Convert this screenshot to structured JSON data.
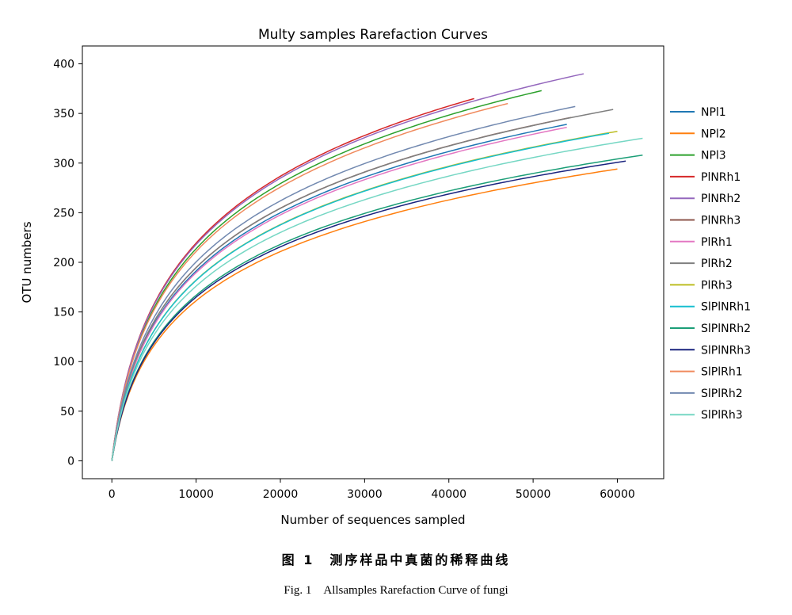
{
  "chart_data": {
    "type": "line",
    "title": "Multy samples Rarefaction Curves",
    "xlabel": "Number of sequences sampled",
    "ylabel": "OTU numbers",
    "xlim": [
      -3500,
      65500
    ],
    "ylim": [
      -18,
      418
    ],
    "xticks": [
      0,
      10000,
      20000,
      30000,
      40000,
      50000,
      60000
    ],
    "yticks": [
      0,
      50,
      100,
      150,
      200,
      250,
      300,
      350,
      400
    ],
    "grid": false,
    "legend": "right, outside plot",
    "series": [
      {
        "name": "NPl1",
        "color": "#1f77b4",
        "xmax": 54000,
        "ymax": 339
      },
      {
        "name": "NPl2",
        "color": "#ff7f0e",
        "xmax": 60000,
        "ymax": 294
      },
      {
        "name": "NPl3",
        "color": "#2ca02c",
        "xmax": 51000,
        "ymax": 373
      },
      {
        "name": "PlNRh1",
        "color": "#d62728",
        "xmax": 43000,
        "ymax": 365
      },
      {
        "name": "PlNRh2",
        "color": "#9467bd",
        "xmax": 56000,
        "ymax": 390
      },
      {
        "name": "PlNRh3",
        "color": "#8c564b",
        "xmax": 54500,
        "ymax": 346
      },
      {
        "name": "PlRh1",
        "color": "#e377c2",
        "xmax": 54000,
        "ymax": 336
      },
      {
        "name": "PlRh2",
        "color": "#7f7f7f",
        "xmax": 59500,
        "ymax": 354
      },
      {
        "name": "PlRh3",
        "color": "#bcbd22",
        "xmax": 60000,
        "ymax": 332
      },
      {
        "name": "SlPlNRh1",
        "color": "#17becf",
        "xmax": 59000,
        "ymax": 330
      },
      {
        "name": "SlPlNRh2",
        "color": "#1b9e77",
        "xmax": 63000,
        "ymax": 308
      },
      {
        "name": "SlPlNRh3",
        "color": "#1a237e",
        "xmax": 61000,
        "ymax": 302
      },
      {
        "name": "SlPlRh1",
        "color": "#f08a5d",
        "xmax": 47000,
        "ymax": 360
      },
      {
        "name": "SlPlRh2",
        "color": "#7289b0",
        "xmax": 55000,
        "ymax": 357
      },
      {
        "name": "SlPlRh3",
        "color": "#76d7c4",
        "xmax": 63000,
        "ymax": 325
      }
    ]
  },
  "caption": {
    "chinese": "图 1　测序样品中真菌的稀释曲线",
    "english": "Fig. 1　Allsamples Rarefaction Curve of fungi"
  }
}
